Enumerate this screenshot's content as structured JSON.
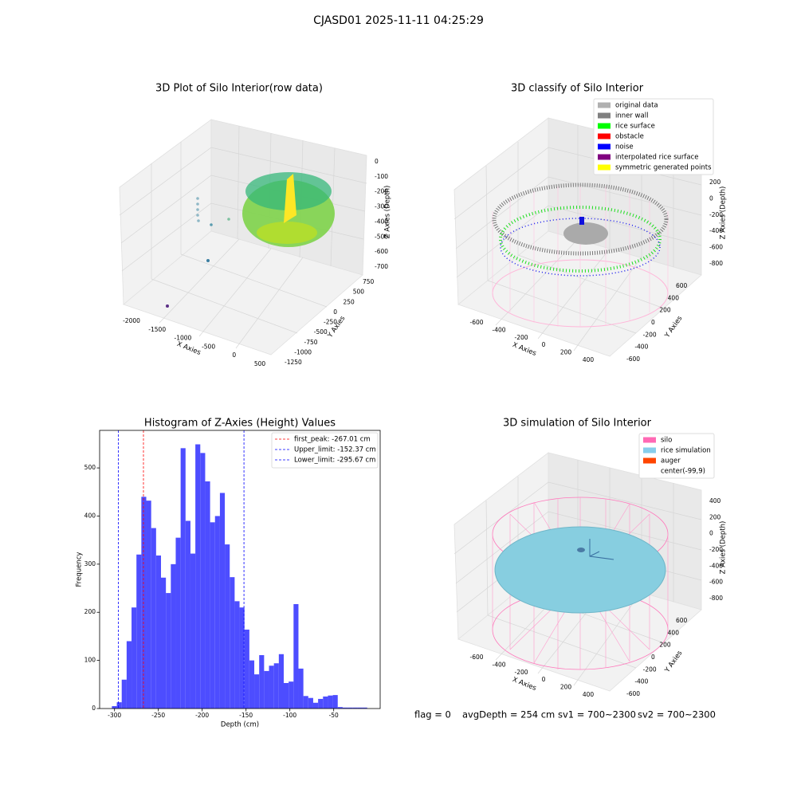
{
  "title": "CJASD01 2025-11-11 04:25:29",
  "chart_data": [
    {
      "type": "scatter3d",
      "title": "3D Plot of Silo Interior(row data)",
      "xlabel": "X Axies",
      "ylabel": "Y Axies",
      "zlabel": "Z Axies (Depth)",
      "xticks": [
        -2000,
        -1500,
        -1000,
        -500,
        0,
        500
      ],
      "yticks": [
        -1250,
        -1000,
        -750,
        -500,
        -250,
        0,
        250,
        500,
        750
      ],
      "zticks": [
        0,
        -100,
        -200,
        -300,
        -400,
        -500,
        -600,
        -700
      ]
    },
    {
      "type": "scatter3d",
      "title": "3D classify of Silo Interior",
      "xlabel": "X Axies",
      "ylabel": "Y Axies",
      "zlabel": "Z Axies (Depth)",
      "xticks": [
        -600,
        -400,
        -200,
        0,
        200,
        400
      ],
      "yticks": [
        -600,
        -400,
        -200,
        0,
        200,
        400,
        600
      ],
      "zticks": [
        200,
        0,
        -200,
        -400,
        -600,
        -800
      ],
      "legend": [
        {
          "name": "original data",
          "color": "#b0b0b0"
        },
        {
          "name": "inner wall",
          "color": "#808080"
        },
        {
          "name": "rice surface",
          "color": "#00ff00"
        },
        {
          "name": "obstacle",
          "color": "#ff0000"
        },
        {
          "name": "noise",
          "color": "#0000ff"
        },
        {
          "name": "interpolated rice surface",
          "color": "#800080"
        },
        {
          "name": "symmetric generated points",
          "color": "#ffff00"
        }
      ]
    },
    {
      "type": "histogram",
      "title": "Histogram of Z-Axies (Height) Values",
      "xlabel": "Depth (cm)",
      "ylabel": "Frequency",
      "color": "#4d4dff",
      "bins": [
        -303,
        -297.4,
        -291.8,
        -286.2,
        -280.6,
        -275,
        -269.4,
        -263.8,
        -258.2,
        -252.6,
        -247,
        -241.4,
        -235.8,
        -230.2,
        -224.6,
        -219,
        -213.4,
        -207.8,
        -202.2,
        -196.6,
        -191,
        -185.4,
        -179.8,
        -174.2,
        -168.6,
        -163,
        -157.4,
        -151.8,
        -146.2,
        -140.6,
        -135,
        -129.4,
        -123.8,
        -118.2,
        -112.6,
        -107,
        -101.4,
        -95.8,
        -90.2,
        -84.6,
        -79,
        -73.4,
        -67.8,
        -62.2,
        -56.6,
        -51,
        -45.4,
        -39.8,
        -34.2,
        -28.6,
        -23,
        -17.4,
        -11.8
      ],
      "values": [
        5,
        13,
        60,
        140,
        210,
        320,
        440,
        432,
        375,
        318,
        272,
        240,
        300,
        355,
        541,
        390,
        322,
        549,
        531,
        472,
        387,
        400,
        448,
        341,
        273,
        223,
        210,
        164,
        100,
        71,
        111,
        78,
        89,
        94,
        113,
        53,
        56,
        217,
        83,
        26,
        22,
        12,
        20,
        25,
        27,
        28,
        3,
        2,
        2,
        2,
        2,
        2
      ],
      "xlim": [
        -317,
        3
      ],
      "ylim": [
        0,
        578
      ],
      "xticks": [
        -300,
        -250,
        -200,
        -150,
        -100,
        -50
      ],
      "yticks": [
        0,
        100,
        200,
        300,
        400,
        500
      ],
      "vlines": [
        {
          "name": "first_peak: -267.01 cm",
          "value": -267.01,
          "color": "#ff0000"
        },
        {
          "name": "Upper_limit: -152.37 cm",
          "value": -152.37,
          "color": "#0000ff"
        },
        {
          "name": "Lower_limit: -295.67 cm",
          "value": -295.67,
          "color": "#0000ff"
        }
      ]
    },
    {
      "type": "scatter3d",
      "title": "3D simulation of Silo Interior",
      "xlabel": "X Axies",
      "ylabel": "Y Axies",
      "zlabel": "Z Axies (Depth)",
      "xticks": [
        -600,
        -400,
        -200,
        0,
        200,
        400
      ],
      "yticks": [
        -600,
        -400,
        -200,
        0,
        200,
        400,
        600
      ],
      "zticks": [
        400,
        200,
        0,
        -200,
        -400,
        -600,
        -800
      ],
      "legend": [
        {
          "name": "silo",
          "color": "#ff69b4"
        },
        {
          "name": "rice simulation",
          "color": "#87ceeb"
        },
        {
          "name": "auger",
          "color": "#ff4500"
        },
        {
          "name": "center(-99,9)"
        }
      ]
    }
  ],
  "footer": [
    "flag = 0",
    "avgDepth = 254 cm",
    "sv1 = 700~2300",
    "sv2 = 700~2300"
  ]
}
